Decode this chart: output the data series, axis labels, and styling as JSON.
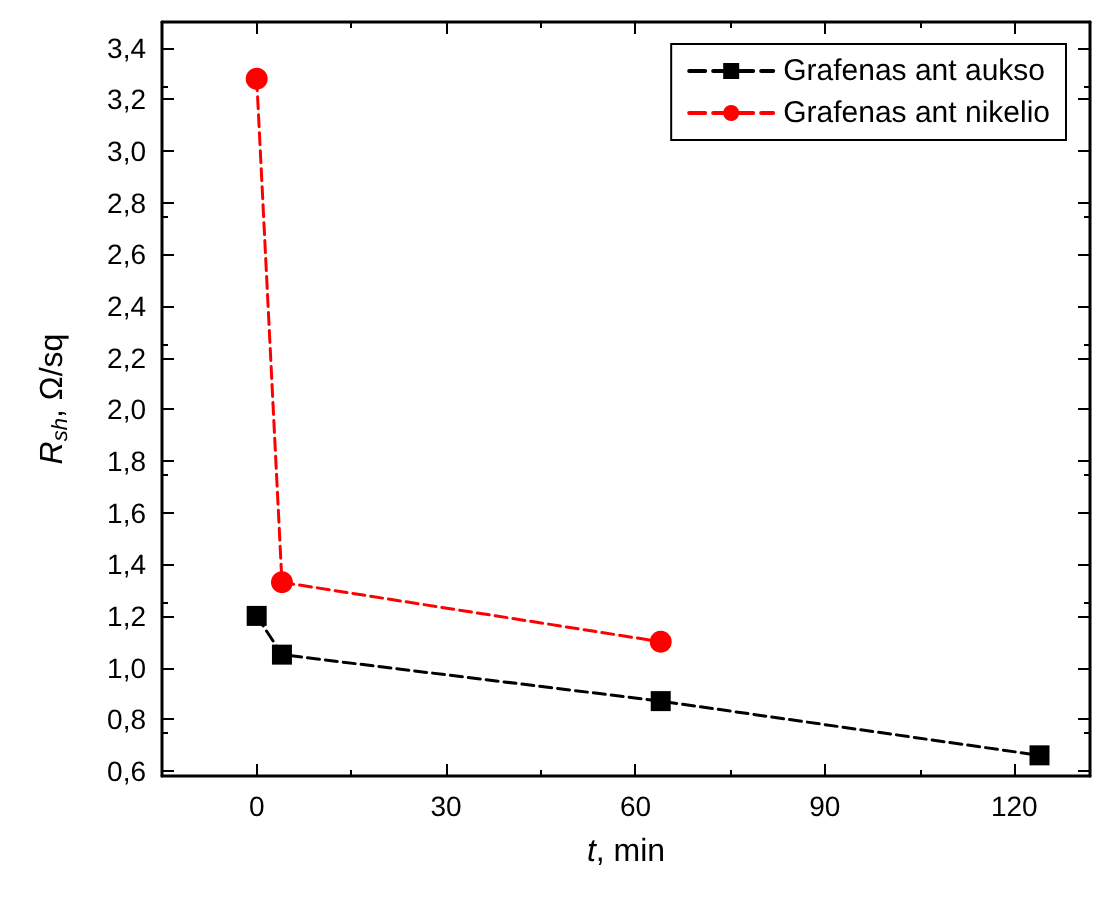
{
  "chart_data": {
    "type": "line",
    "xlabel": "t, min",
    "ylabel": "R$_{sh}$, Ω/sq",
    "xlim": [
      -15,
      132
    ],
    "xticks": [
      0,
      30,
      60,
      90,
      120
    ],
    "ylim": [
      0.58,
      3.5
    ],
    "yticks": [
      {
        "value": 0.6,
        "label": "0,6"
      },
      {
        "value": 0.8,
        "label": "0,8"
      },
      {
        "value": 1.0,
        "label": "1,0"
      },
      {
        "value": 1.2,
        "label": "1,2"
      },
      {
        "value": 1.4,
        "label": "1,4"
      },
      {
        "value": 1.6,
        "label": "1,6"
      },
      {
        "value": 1.8,
        "label": "1,8"
      },
      {
        "value": 2.0,
        "label": "2,0"
      },
      {
        "value": 2.2,
        "label": "2,2"
      },
      {
        "value": 2.4,
        "label": "2,4"
      },
      {
        "value": 2.6,
        "label": "2,6"
      },
      {
        "value": 2.8,
        "label": "2,8"
      },
      {
        "value": 3.0,
        "label": "3,0"
      },
      {
        "value": 3.2,
        "label": "3,2"
      },
      {
        "value": 3.4,
        "label": "3,4"
      }
    ],
    "series": [
      {
        "name": "Grafenas ant aukso",
        "color": "#000000",
        "marker": "square",
        "x": [
          0,
          4,
          64,
          124
        ],
        "values": [
          1.2,
          1.05,
          0.87,
          0.66
        ]
      },
      {
        "name": "Grafenas ant nikelio",
        "color": "#ff0000",
        "marker": "circle",
        "x": [
          0,
          4,
          64
        ],
        "values": [
          3.28,
          1.33,
          1.1
        ]
      }
    ],
    "line_style": "dashed",
    "legend": "top right",
    "grid": false
  }
}
